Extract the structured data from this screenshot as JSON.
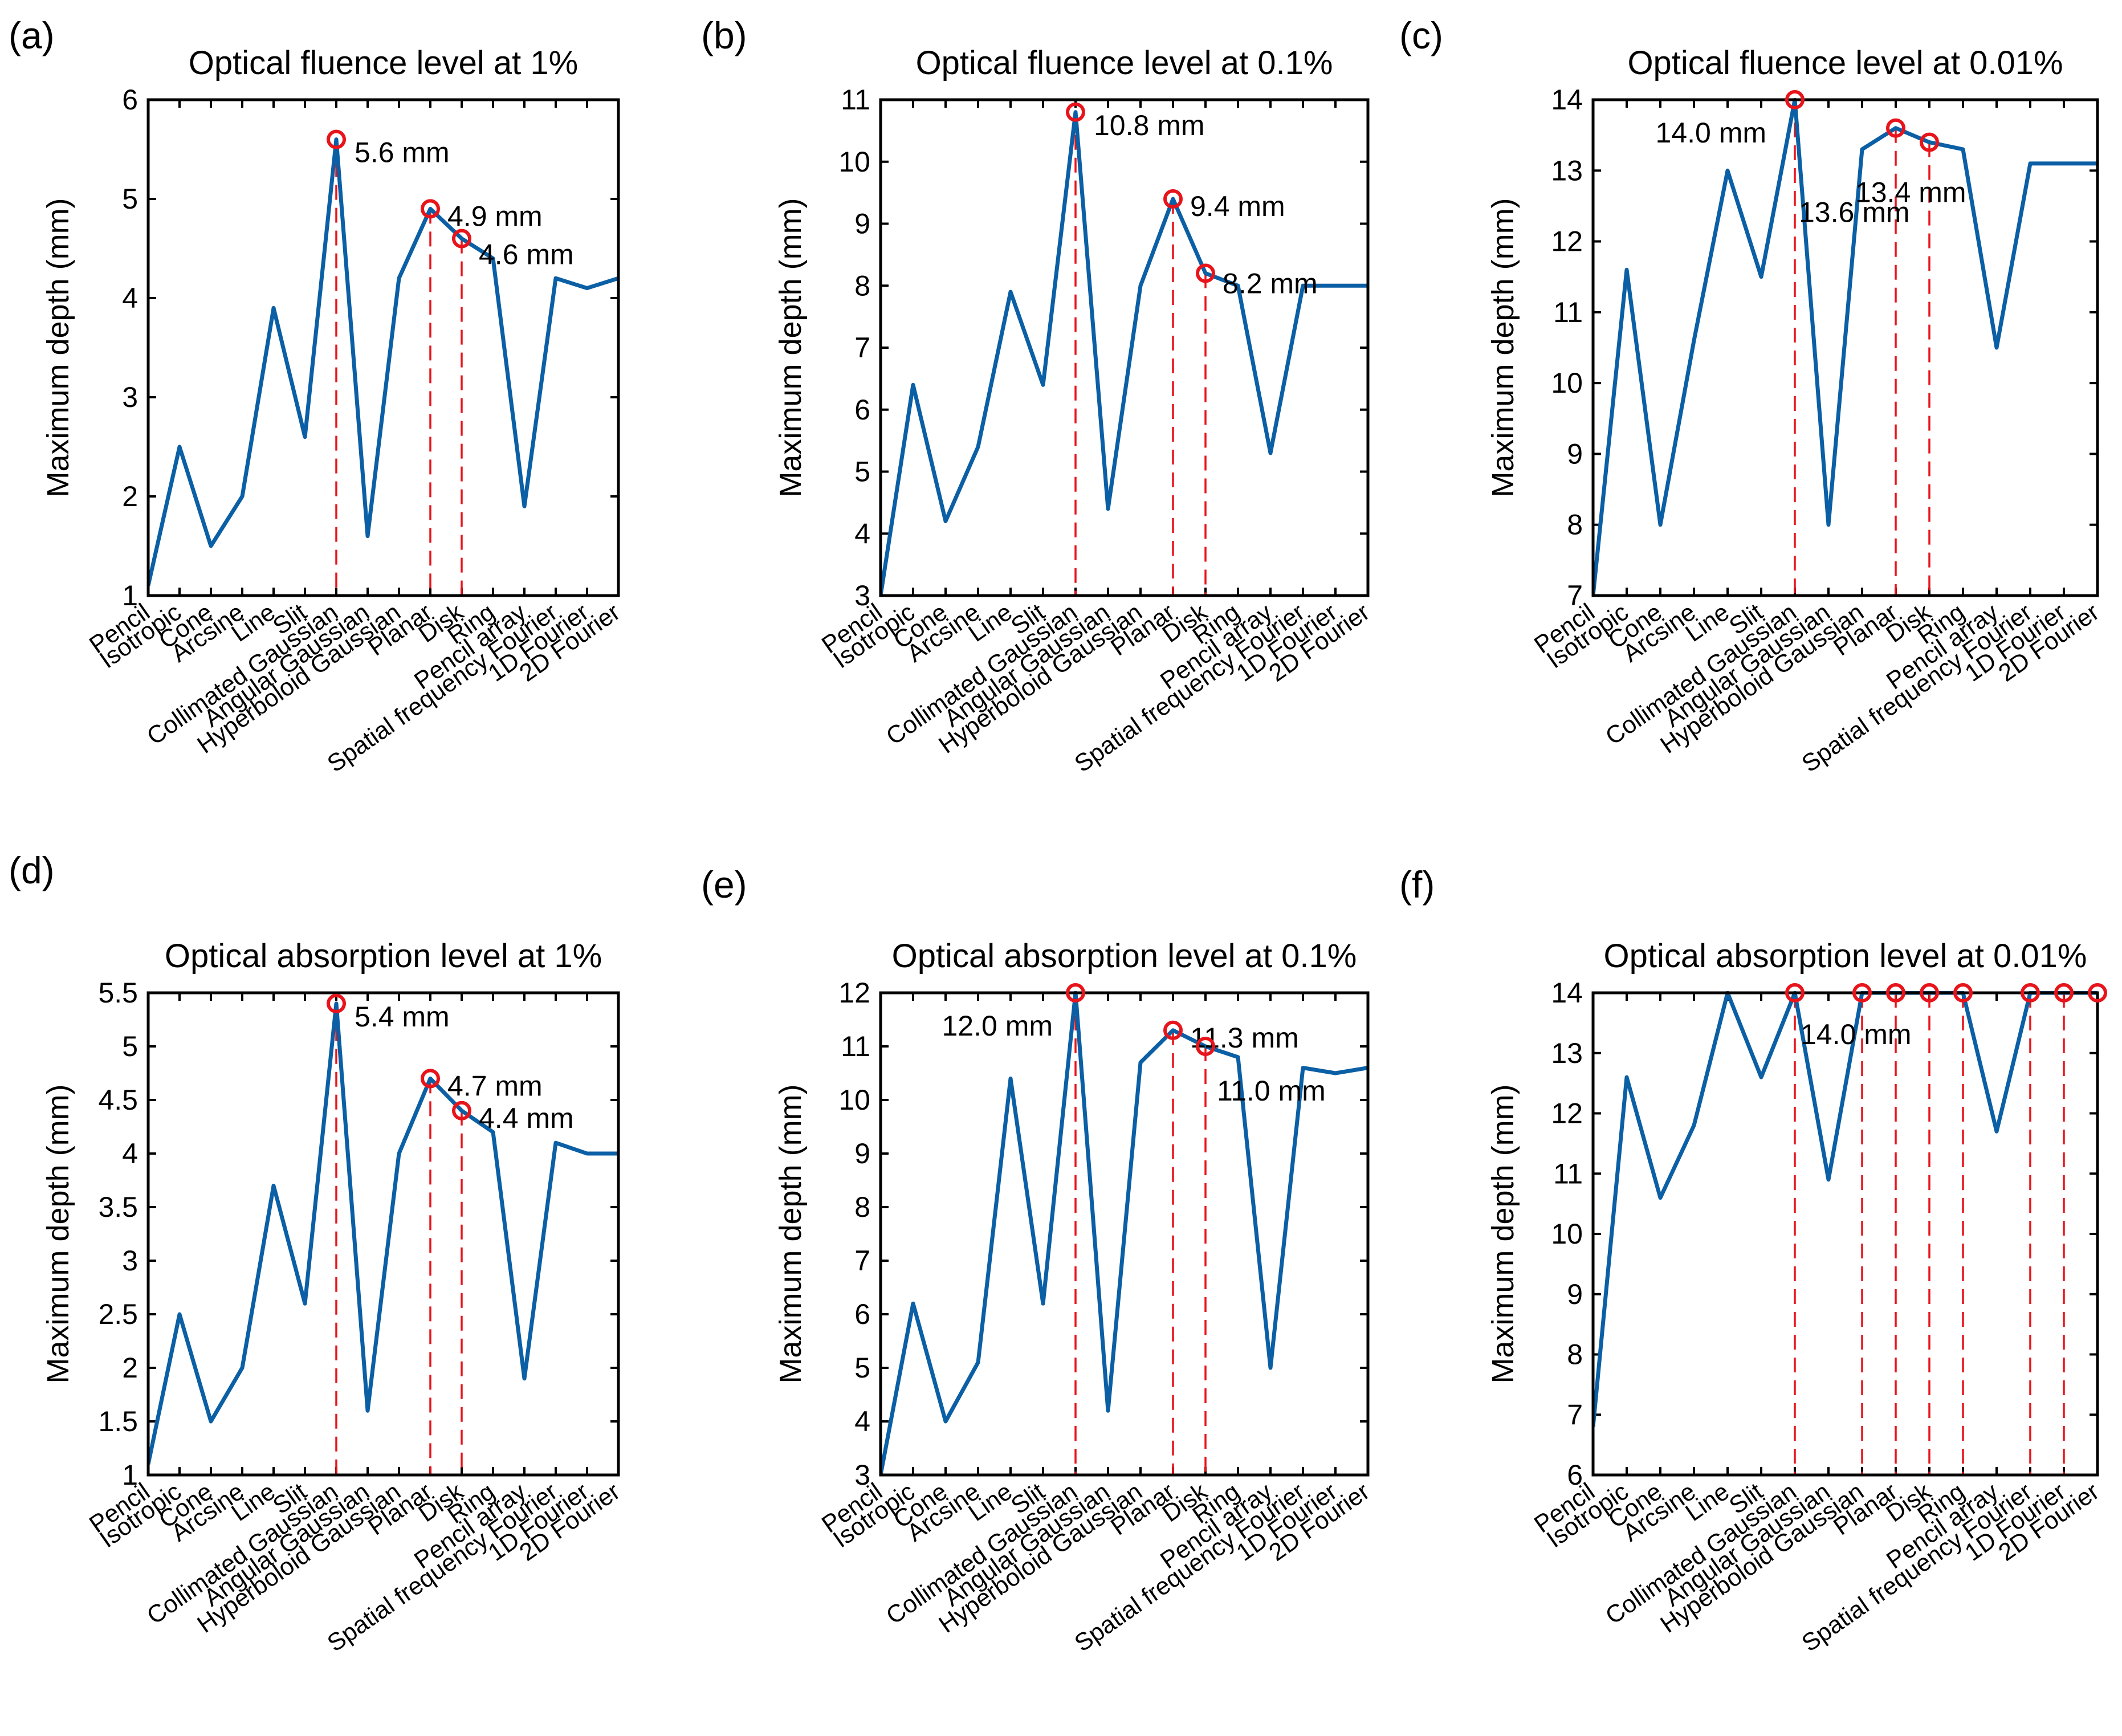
{
  "chart_data": [
    {
      "panel": "(a)",
      "type": "line",
      "title": "Optical fluence level at 1%",
      "xlabel": "",
      "ylabel": "Maximum depth (mm)",
      "ylim": [
        1,
        6
      ],
      "yticks": [
        1,
        2,
        3,
        4,
        5,
        6
      ],
      "categories": [
        "Pencil",
        "Isotropic",
        "Cone",
        "Arcsine",
        "Line",
        "Slit",
        "Collimated Gaussian",
        "Angular Gaussian",
        "Hyperboloid Gaussian",
        "Planar",
        "Disk",
        "Ring",
        "Pencil array",
        "Spatial frequency Fourier",
        "1D Fourier",
        "2D Fourier"
      ],
      "series": [
        {
          "name": "Maximum depth",
          "color": "#0b5fa5",
          "values": [
            1.1,
            2.5,
            1.5,
            2.0,
            3.9,
            2.6,
            5.6,
            1.6,
            4.2,
            4.9,
            4.6,
            4.4,
            1.9,
            4.2,
            4.1,
            4.2
          ]
        }
      ],
      "markers": [
        {
          "index": 6,
          "value": 5.6,
          "label": "5.6 mm"
        },
        {
          "index": 9,
          "value": 4.9,
          "label": "4.9 mm"
        },
        {
          "index": 10,
          "value": 4.6,
          "label": "4.6 mm"
        }
      ],
      "marker_color": "#e8141b"
    },
    {
      "panel": "(b)",
      "type": "line",
      "title": "Optical fluence level at 0.1%",
      "xlabel": "",
      "ylabel": "Maximum depth (mm)",
      "ylim": [
        3,
        11
      ],
      "yticks": [
        3,
        4,
        5,
        6,
        7,
        8,
        9,
        10,
        11
      ],
      "categories": [
        "Pencil",
        "Isotropic",
        "Cone",
        "Arcsine",
        "Line",
        "Slit",
        "Collimated Gaussian",
        "Angular Gaussian",
        "Hyperboloid Gaussian",
        "Planar",
        "Disk",
        "Ring",
        "Pencil array",
        "Spatial frequency Fourier",
        "1D Fourier",
        "2D Fourier"
      ],
      "series": [
        {
          "name": "Maximum depth",
          "color": "#0b5fa5",
          "values": [
            3.0,
            6.4,
            4.2,
            5.4,
            7.9,
            6.4,
            10.8,
            4.4,
            8.0,
            9.4,
            8.2,
            8.0,
            5.3,
            8.0,
            8.0,
            8.0
          ]
        }
      ],
      "markers": [
        {
          "index": 6,
          "value": 10.8,
          "label": "10.8 mm"
        },
        {
          "index": 9,
          "value": 9.4,
          "label": "9.4 mm"
        },
        {
          "index": 10,
          "value": 8.2,
          "label": "8.2 mm"
        }
      ],
      "marker_color": "#e8141b"
    },
    {
      "panel": "(c)",
      "type": "line",
      "title": "Optical fluence level at 0.01%",
      "xlabel": "",
      "ylabel": "Maximum depth (mm)",
      "ylim": [
        7,
        14
      ],
      "yticks": [
        7,
        8,
        9,
        10,
        11,
        12,
        13,
        14
      ],
      "categories": [
        "Pencil",
        "Isotropic",
        "Cone",
        "Arcsine",
        "Line",
        "Slit",
        "Collimated Gaussian",
        "Angular Gaussian",
        "Hyperboloid Gaussian",
        "Planar",
        "Disk",
        "Ring",
        "Pencil array",
        "Spatial frequency Fourier",
        "1D Fourier",
        "2D Fourier"
      ],
      "series": [
        {
          "name": "Maximum depth",
          "color": "#0b5fa5",
          "values": [
            7.0,
            11.6,
            8.0,
            10.6,
            13.0,
            11.5,
            14.0,
            8.0,
            13.3,
            13.6,
            13.4,
            13.3,
            10.5,
            13.1,
            13.1,
            13.1
          ]
        }
      ],
      "markers": [
        {
          "index": 6,
          "value": 14.0,
          "label": "14.0 mm"
        },
        {
          "index": 9,
          "value": 13.6,
          "label": "13.6 mm"
        },
        {
          "index": 10,
          "value": 13.4,
          "label": "13.4 mm"
        }
      ],
      "marker_color": "#e8141b"
    },
    {
      "panel": "(d)",
      "type": "line",
      "title": "Optical absorption level at 1%",
      "xlabel": "",
      "ylabel": "Maximum depth (mm)",
      "ylim": [
        1,
        5.5
      ],
      "yticks": [
        1,
        1.5,
        2,
        2.5,
        3,
        3.5,
        4,
        4.5,
        5,
        5.5
      ],
      "categories": [
        "Pencil",
        "Isotropic",
        "Cone",
        "Arcsine",
        "Line",
        "Slit",
        "Collimated Gaussian",
        "Angular Gaussian",
        "Hyperboloid Gaussian",
        "Planar",
        "Disk",
        "Ring",
        "Pencil array",
        "Spatial frequency Fourier",
        "1D Fourier",
        "2D Fourier"
      ],
      "series": [
        {
          "name": "Maximum depth",
          "color": "#0b5fa5",
          "values": [
            1.1,
            2.5,
            1.5,
            2.0,
            3.7,
            2.6,
            5.4,
            1.6,
            4.0,
            4.7,
            4.4,
            4.2,
            1.9,
            4.1,
            4.0,
            4.0
          ]
        }
      ],
      "markers": [
        {
          "index": 6,
          "value": 5.4,
          "label": "5.4 mm"
        },
        {
          "index": 9,
          "value": 4.7,
          "label": "4.7 mm"
        },
        {
          "index": 10,
          "value": 4.4,
          "label": "4.4 mm"
        }
      ],
      "marker_color": "#e8141b"
    },
    {
      "panel": "(e)",
      "type": "line",
      "title": "Optical absorption level at 0.1%",
      "xlabel": "",
      "ylabel": "Maximum depth (mm)",
      "ylim": [
        3,
        12
      ],
      "yticks": [
        3,
        4,
        5,
        6,
        7,
        8,
        9,
        10,
        11,
        12
      ],
      "categories": [
        "Pencil",
        "Isotropic",
        "Cone",
        "Arcsine",
        "Line",
        "Slit",
        "Collimated Gaussian",
        "Angular Gaussian",
        "Hyperboloid Gaussian",
        "Planar",
        "Disk",
        "Ring",
        "Pencil array",
        "Spatial frequency Fourier",
        "1D Fourier",
        "2D Fourier"
      ],
      "series": [
        {
          "name": "Maximum depth",
          "color": "#0b5fa5",
          "values": [
            3.0,
            6.2,
            4.0,
            5.1,
            10.4,
            6.2,
            12.0,
            4.2,
            10.7,
            11.3,
            11.0,
            10.8,
            5.0,
            10.6,
            10.5,
            10.6
          ]
        }
      ],
      "markers": [
        {
          "index": 6,
          "value": 12.0,
          "label": "12.0 mm"
        },
        {
          "index": 9,
          "value": 11.3,
          "label": "11.3 mm"
        },
        {
          "index": 10,
          "value": 11.0,
          "label": "11.0 mm"
        }
      ],
      "marker_color": "#e8141b"
    },
    {
      "panel": "(f)",
      "type": "line",
      "title": "Optical absorption level at 0.01%",
      "xlabel": "",
      "ylabel": "Maximum depth (mm)",
      "ylim": [
        6,
        14
      ],
      "yticks": [
        6,
        7,
        8,
        9,
        10,
        11,
        12,
        13,
        14
      ],
      "categories": [
        "Pencil",
        "Isotropic",
        "Cone",
        "Arcsine",
        "Line",
        "Slit",
        "Collimated Gaussian",
        "Angular Gaussian",
        "Hyperboloid Gaussian",
        "Planar",
        "Disk",
        "Ring",
        "Pencil array",
        "Spatial frequency Fourier",
        "1D Fourier",
        "2D Fourier"
      ],
      "series": [
        {
          "name": "Maximum depth",
          "color": "#0b5fa5",
          "values": [
            6.8,
            12.6,
            10.6,
            11.8,
            14.0,
            12.6,
            14.0,
            10.9,
            14.0,
            14.0,
            14.0,
            14.0,
            11.7,
            14.0,
            14.0,
            14.0
          ]
        }
      ],
      "markers": [
        {
          "index": 6,
          "value": 14.0,
          "label": "14.0 mm"
        },
        {
          "index": 8,
          "value": 14.0,
          "label": ""
        },
        {
          "index": 9,
          "value": 14.0,
          "label": ""
        },
        {
          "index": 10,
          "value": 14.0,
          "label": ""
        },
        {
          "index": 11,
          "value": 14.0,
          "label": ""
        },
        {
          "index": 13,
          "value": 14.0,
          "label": ""
        },
        {
          "index": 14,
          "value": 14.0,
          "label": ""
        },
        {
          "index": 15,
          "value": 14.0,
          "label": ""
        }
      ],
      "marker_color": "#e8141b"
    }
  ]
}
